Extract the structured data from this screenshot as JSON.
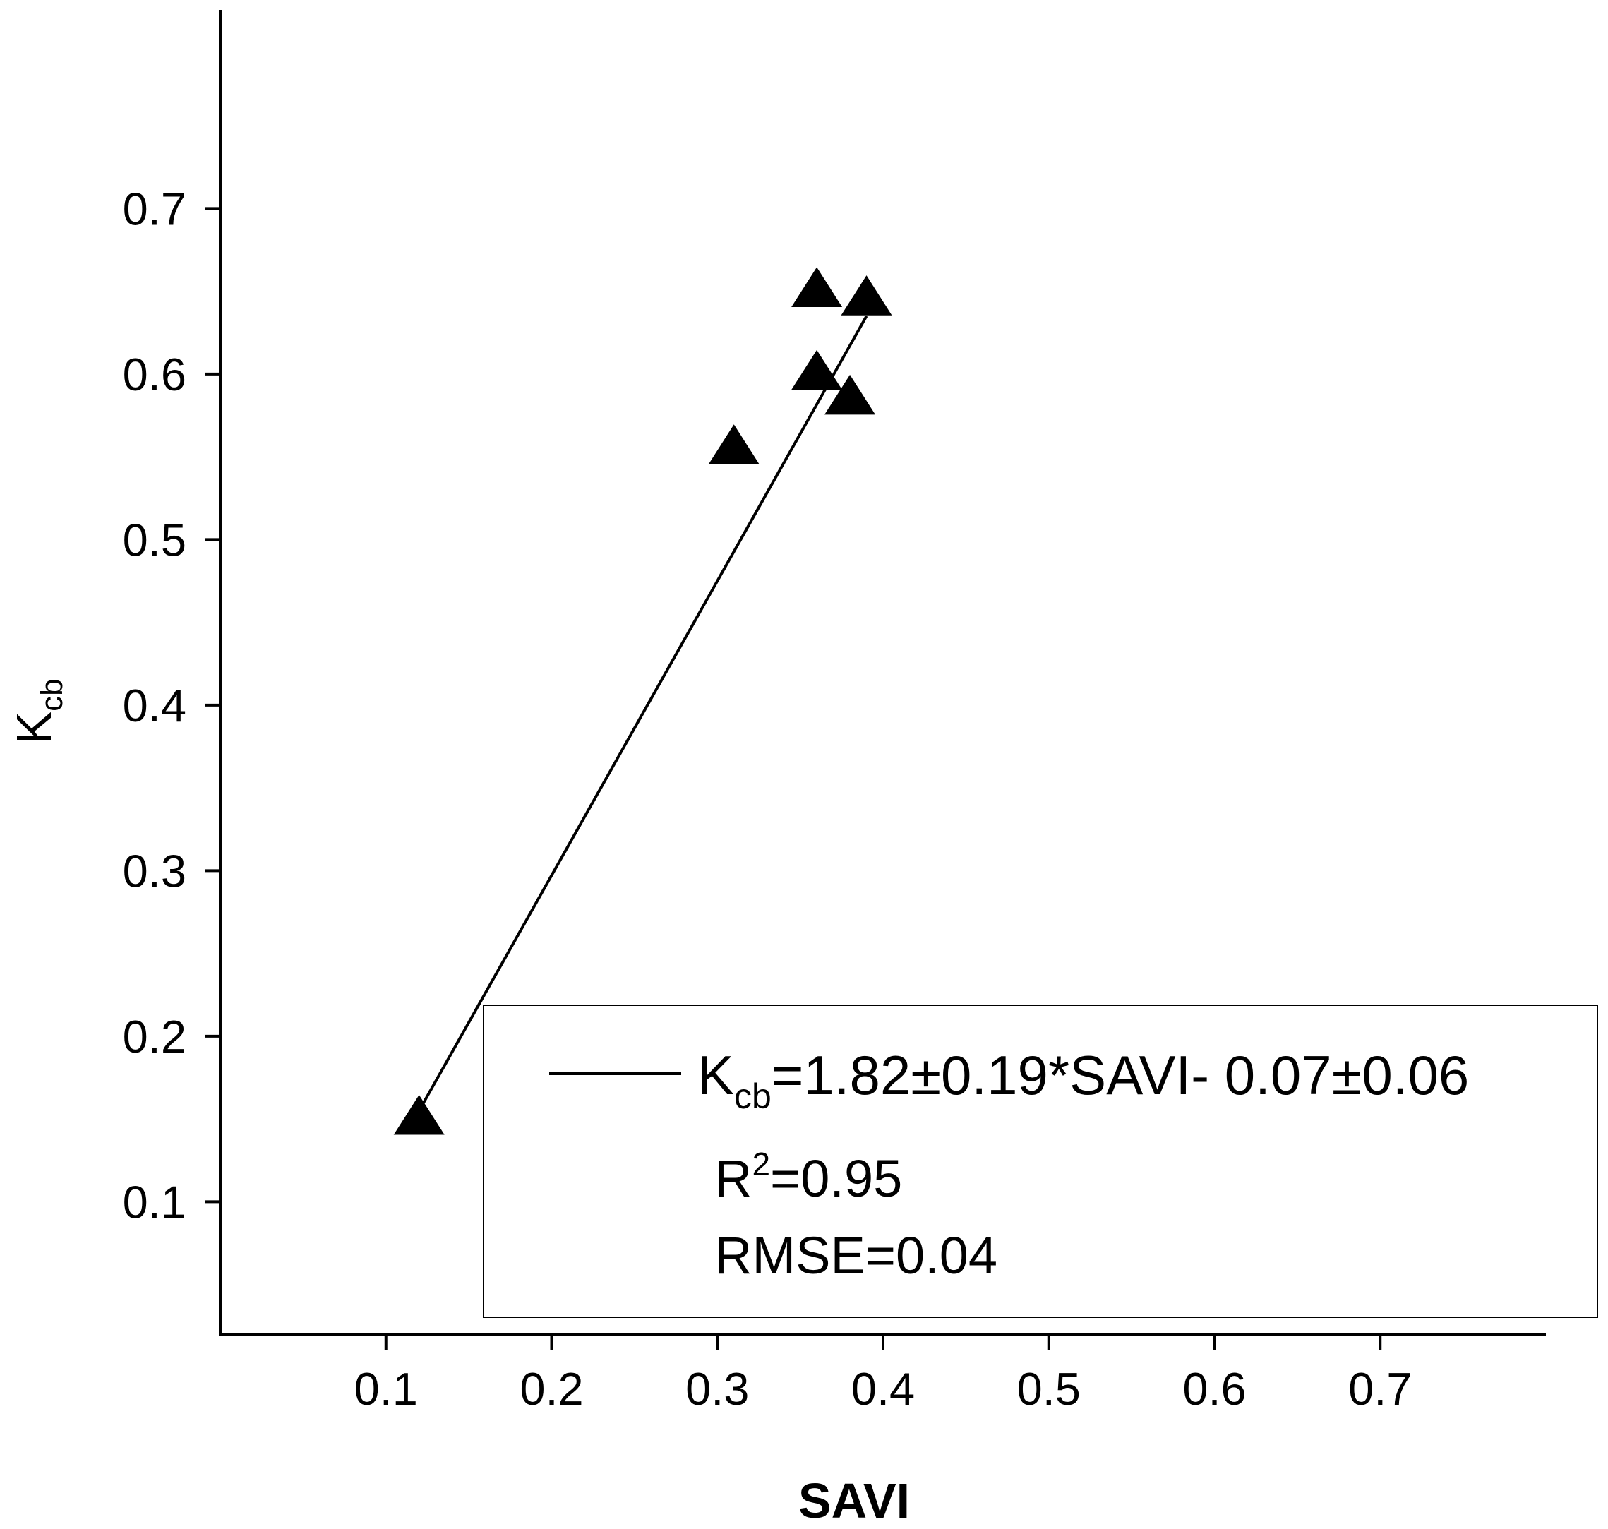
{
  "chart_data": {
    "type": "scatter",
    "xlabel": "SAVI",
    "ylabel": {
      "main": "K",
      "sub": "cb"
    },
    "xlim": [
      0.0,
      0.8
    ],
    "ylim": [
      0.02,
      0.82
    ],
    "xticks": [
      "0.1",
      "0.2",
      "0.3",
      "0.4",
      "0.5",
      "0.6",
      "0.7"
    ],
    "yticks": [
      "0.1",
      "0.2",
      "0.3",
      "0.4",
      "0.5",
      "0.6",
      "0.7"
    ],
    "grid": false,
    "series": [
      {
        "marker": "triangle",
        "color": "#000000",
        "points": [
          {
            "x": 0.12,
            "y": 0.15
          },
          {
            "x": 0.31,
            "y": 0.555
          },
          {
            "x": 0.36,
            "y": 0.65
          },
          {
            "x": 0.36,
            "y": 0.6
          },
          {
            "x": 0.38,
            "y": 0.585
          },
          {
            "x": 0.39,
            "y": 0.645
          }
        ]
      }
    ],
    "fit_line": {
      "x_start": 0.12,
      "y_start": 0.155,
      "x_end": 0.39,
      "y_end": 0.635
    },
    "legend": {
      "placement": "bottom-right",
      "equation": {
        "lhs_main": "K",
        "lhs_sub": "cb",
        "rhs": "=1.82±0.19*SAVI- 0.07±0.06"
      },
      "r2": {
        "main": "R",
        "sup": "2",
        "rhs": "=0.95"
      },
      "rmse": "RMSE=0.04"
    }
  }
}
